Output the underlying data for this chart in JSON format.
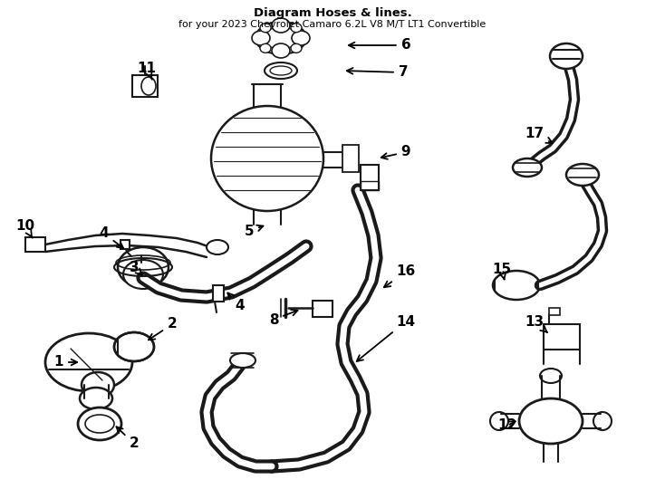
{
  "background_color": "#ffffff",
  "line_color": "#1a1a1a",
  "fig_width": 7.34,
  "fig_height": 5.4,
  "dpi": 100,
  "title1": "Diagram Hoses & lines.",
  "title2": "for your 2023 Chevrolet Camaro 6.2L V8 M/T LT1 Convertible",
  "label_positions": {
    "1": [
      0.055,
      0.365,
      0.085,
      0.375
    ],
    "2a": [
      0.215,
      0.345,
      0.195,
      0.355
    ],
    "2b": [
      0.155,
      0.1,
      0.175,
      0.115
    ],
    "3": [
      0.165,
      0.515,
      0.185,
      0.505
    ],
    "4a": [
      0.13,
      0.44,
      0.145,
      0.455
    ],
    "4b": [
      0.33,
      0.44,
      0.32,
      0.455
    ],
    "5": [
      0.305,
      0.57,
      0.325,
      0.58
    ],
    "6": [
      0.475,
      0.925,
      0.42,
      0.925
    ],
    "7": [
      0.48,
      0.885,
      0.415,
      0.885
    ],
    "8": [
      0.385,
      0.425,
      0.405,
      0.44
    ],
    "9": [
      0.455,
      0.67,
      0.44,
      0.66
    ],
    "10": [
      0.04,
      0.605,
      0.06,
      0.595
    ],
    "11": [
      0.2,
      0.795,
      0.225,
      0.775
    ],
    "12": [
      0.715,
      0.1,
      0.735,
      0.115
    ],
    "13": [
      0.74,
      0.295,
      0.76,
      0.31
    ],
    "14": [
      0.535,
      0.21,
      0.555,
      0.225
    ],
    "15": [
      0.745,
      0.535,
      0.76,
      0.525
    ],
    "16": [
      0.565,
      0.46,
      0.535,
      0.455
    ],
    "17": [
      0.795,
      0.71,
      0.82,
      0.7
    ]
  }
}
